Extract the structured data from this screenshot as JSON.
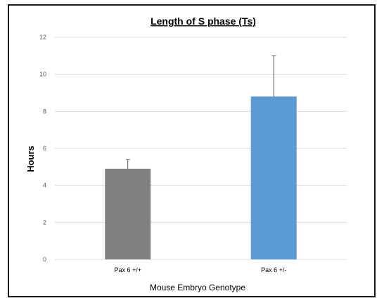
{
  "chart_data": {
    "type": "bar",
    "title": "Length of S phase (Ts)",
    "xlabel": "Mouse Embryo Genotype",
    "ylabel": "Hours",
    "categories": [
      "Pax 6 +/+",
      "Pax 6 +/-"
    ],
    "values": [
      4.9,
      8.8
    ],
    "error_upper": [
      5.4,
      11.0
    ],
    "colors": [
      "#808080",
      "#5b9bd5"
    ],
    "ylim": [
      0,
      12
    ],
    "yticks": [
      "0",
      "2",
      "4",
      "6",
      "8",
      "10",
      "12"
    ],
    "grid": true,
    "legend": "none"
  }
}
